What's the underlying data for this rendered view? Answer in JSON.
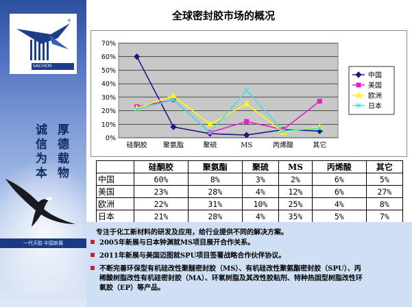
{
  "sidebar": {
    "logo_text": "SACHEM",
    "motto_col1": "厚德载物",
    "motto_col2": "诚信为本",
    "footer": "一代天胶   中国新展"
  },
  "title": "全球密封胶市场的概况",
  "chart_data": {
    "type": "line",
    "categories": [
      "硅酮胶",
      "聚氨脂",
      "聚硫",
      "MS",
      "丙烯酸",
      "其它"
    ],
    "ylim": [
      0,
      70
    ],
    "yticks": [
      "0%",
      "10%",
      "20%",
      "30%",
      "40%",
      "50%",
      "60%",
      "70%"
    ],
    "grid": "horizontal",
    "legend": "right",
    "series": [
      {
        "name": "中国",
        "color": "#1a1a80",
        "marker": "diamond",
        "values": [
          60,
          8,
          3,
          2,
          6,
          5
        ]
      },
      {
        "name": "美国",
        "color": "#e020c8",
        "marker": "square",
        "values": [
          23,
          28,
          4,
          12,
          6,
          27
        ]
      },
      {
        "name": "欧洲",
        "color": "#ffff00",
        "marker": "triangle",
        "values": [
          22,
          31,
          10,
          25,
          4,
          8
        ]
      },
      {
        "name": "日本",
        "color": "#40e0e0",
        "marker": "x",
        "values": [
          21,
          28,
          4,
          35,
          5,
          7
        ]
      }
    ]
  },
  "table": {
    "headers": [
      "",
      "硅酮胶",
      "聚氨酯",
      "聚硫",
      "MS",
      "丙烯酸",
      "其它"
    ],
    "rows": [
      {
        "name": "中国",
        "cells": [
          "60%",
          "8%",
          "3%",
          "2%",
          "6%",
          "5%"
        ]
      },
      {
        "name": "美国",
        "cells": [
          "23%",
          "28%",
          "4%",
          "12%",
          "6%",
          "27%"
        ]
      },
      {
        "name": "欧洲",
        "cells": [
          "22%",
          "31%",
          "10%",
          "25%",
          "4%",
          "8%"
        ]
      },
      {
        "name": "日本",
        "cells": [
          "21%",
          "28%",
          "4%",
          "35%",
          "5%",
          "7%"
        ]
      }
    ]
  },
  "description": {
    "intro": "专注于化工新材料的研发及应用，给行业提供不同的解决方案。",
    "bullets": [
      "2005年新展与日本钟渊就MS项目展开合作关系。",
      "2011年新展与美国迈图就SPU项目签署战略合作伙伴协议。",
      "不断完善环保型有机硅改性聚醚密封胶（MS）、有机硅改性聚氨酯密封胶（SPU）、丙",
      "稀酸树脂改性有机硅密封胶（MA）、环氧树脂及其改性胶粘剂、特种热固型树脂改性环",
      "氧胶（EP）等产品。"
    ],
    "bullet_color": "#c0262c",
    "background": "#cfe0f4"
  }
}
